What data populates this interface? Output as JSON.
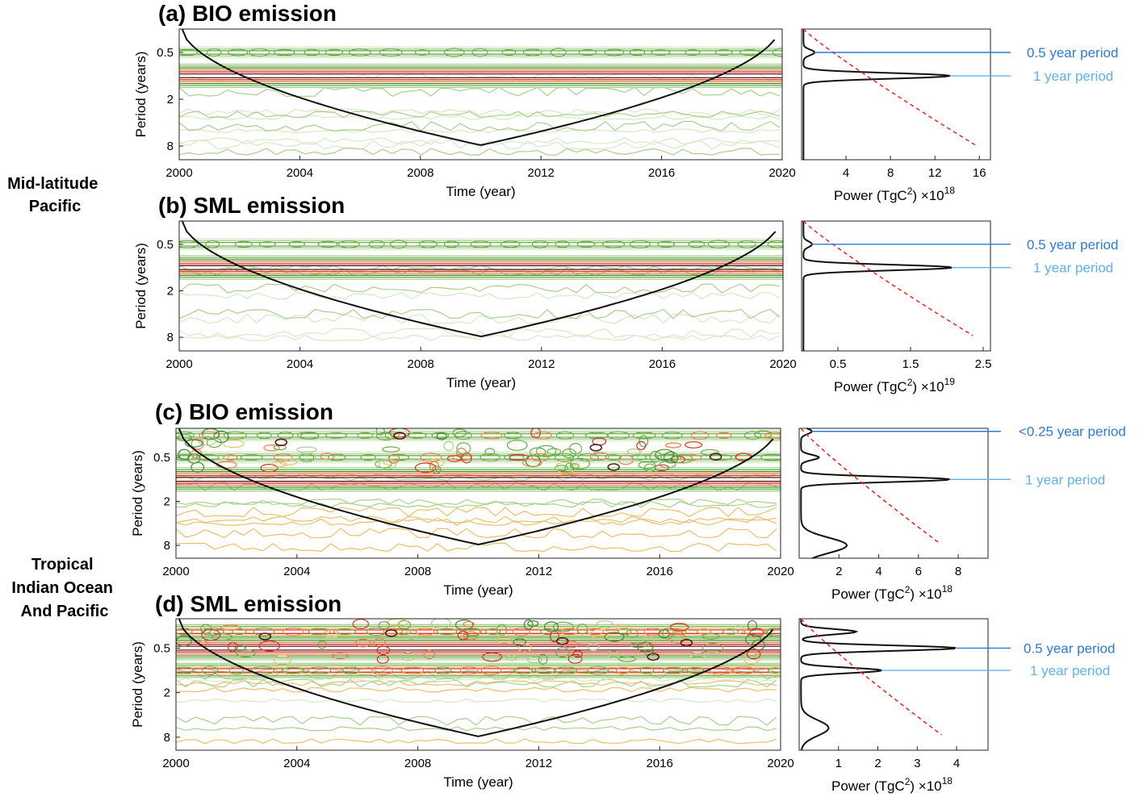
{
  "figure": {
    "region_labels": [
      {
        "lines": [
          "Mid-latitude",
          "Pacific"
        ]
      },
      {
        "lines": [
          "Tropical",
          "Indian Ocean",
          "And Pacific"
        ]
      }
    ]
  },
  "colors": {
    "sig_curve": "#111111",
    "spectrum": "#111111",
    "significance": "#e8291c",
    "contours": [
      "#d7e8c6",
      "#a8d08d",
      "#6aae4a",
      "#3d8a2b",
      "#e9c06a",
      "#ee7e4a",
      "#d9312a",
      "#5a1a20"
    ],
    "annot_dark": "#2d7bd6",
    "annot_light": "#5cb3ec"
  },
  "chart_data": [
    {
      "type": "heatmap",
      "panel": "(a)",
      "title": "BIO emission",
      "xlabel": "Time (year)",
      "ylabel": "Period (years)",
      "x_ticks": [
        "2000",
        "2004",
        "2008",
        "2012",
        "2016",
        "2020"
      ],
      "y_ticks": [
        "0.5",
        "2",
        "8"
      ],
      "xlim": [
        2000,
        2020
      ],
      "period_range": [
        0.25,
        12
      ],
      "dominant_bands": [
        {
          "period": 1,
          "strength": "strong"
        },
        {
          "period": 0.5,
          "strength": "weak"
        }
      ],
      "cone_of_influence_max_period": 7.8,
      "global_spectrum": {
        "xlabel": "Power (TgC",
        "xlabel_sup": "2",
        "xlabel_tail": ") ×10",
        "multiplier_exp": "18",
        "x_ticks": [
          "4",
          "8",
          "12",
          "16"
        ],
        "xlim": [
          0,
          17
        ],
        "peaks": [
          {
            "period": 0.5,
            "power": 1.0
          },
          {
            "period": 1,
            "power": 13.2
          }
        ],
        "significance_end_power": 15.5,
        "annotations": [
          {
            "text": "0.5 year period",
            "period": 0.5,
            "shade": "dark"
          },
          {
            "text": "1 year period",
            "period": 1,
            "shade": "light"
          }
        ]
      }
    },
    {
      "type": "heatmap",
      "panel": "(b)",
      "title": "SML emission",
      "xlabel": "Time (year)",
      "ylabel": "Period (years)",
      "x_ticks": [
        "2000",
        "2004",
        "2008",
        "2012",
        "2016",
        "2020"
      ],
      "y_ticks": [
        "0.5",
        "2",
        "8"
      ],
      "xlim": [
        2000,
        2020
      ],
      "period_range": [
        0.25,
        12
      ],
      "dominant_bands": [
        {
          "period": 1,
          "strength": "strong"
        },
        {
          "period": 0.5,
          "strength": "weak"
        }
      ],
      "cone_of_influence_max_period": 7.8,
      "global_spectrum": {
        "xlabel": "Power (TgC",
        "xlabel_sup": "2",
        "xlabel_tail": ") ×10",
        "multiplier_exp": "19",
        "x_ticks": [
          "0.5",
          "1.5",
          "2.5"
        ],
        "xlim": [
          0,
          2.6
        ],
        "peaks": [
          {
            "period": 0.5,
            "power": 0.12
          },
          {
            "period": 1,
            "power": 2.05
          }
        ],
        "significance_end_power": 2.35,
        "annotations": [
          {
            "text": "0.5 year period",
            "period": 0.5,
            "shade": "dark"
          },
          {
            "text": "1 year period",
            "period": 1,
            "shade": "light"
          }
        ]
      }
    },
    {
      "type": "heatmap",
      "panel": "(c)",
      "title": "BIO emission",
      "xlabel": "Time (year)",
      "ylabel": "Period (years)",
      "x_ticks": [
        "2000",
        "2004",
        "2008",
        "2012",
        "2016",
        "2020"
      ],
      "y_ticks": [
        "0.5",
        "2",
        "8"
      ],
      "xlim": [
        2000,
        2020
      ],
      "period_range": [
        0.2,
        12
      ],
      "dominant_bands": [
        {
          "period": 1,
          "strength": "strong"
        },
        {
          "period": 0.5,
          "strength": "weak"
        },
        {
          "period": 0.25,
          "strength": "weak"
        }
      ],
      "cone_of_influence_max_period": 7.8,
      "global_spectrum": {
        "xlabel": "Power (TgC",
        "xlabel_sup": "2",
        "xlabel_tail": ") ×10",
        "multiplier_exp": "18",
        "x_ticks": [
          "2",
          "4",
          "6",
          "8"
        ],
        "xlim": [
          0,
          9.5
        ],
        "peaks": [
          {
            "period": 0.22,
            "power": 0.55
          },
          {
            "period": 0.5,
            "power": 0.9
          },
          {
            "period": 1,
            "power": 7.5
          },
          {
            "period": 8,
            "power": 2.3
          }
        ],
        "significance_end_power": 7.0,
        "annotations": [
          {
            "text": "<0.25 year period",
            "period": 0.22,
            "shade": "dark"
          },
          {
            "text": "1 year period",
            "period": 1,
            "shade": "light"
          }
        ]
      }
    },
    {
      "type": "heatmap",
      "panel": "(d)",
      "title": "SML emission",
      "xlabel": "Time (year)",
      "ylabel": "Period (years)",
      "x_ticks": [
        "2000",
        "2004",
        "2008",
        "2012",
        "2016",
        "2020"
      ],
      "y_ticks": [
        "0.5",
        "2",
        "8"
      ],
      "xlim": [
        2000,
        2020
      ],
      "period_range": [
        0.2,
        12
      ],
      "dominant_bands": [
        {
          "period": 0.5,
          "strength": "strong"
        },
        {
          "period": 1,
          "strength": "medium"
        },
        {
          "period": 0.3,
          "strength": "medium"
        }
      ],
      "cone_of_influence_max_period": 7.8,
      "global_spectrum": {
        "xlabel": "Power (TgC",
        "xlabel_sup": "2",
        "xlabel_tail": ") ×10",
        "multiplier_exp": "18",
        "x_ticks": [
          "1",
          "2",
          "3",
          "4"
        ],
        "xlim": [
          0,
          4.8
        ],
        "peaks": [
          {
            "period": 0.3,
            "power": 1.4
          },
          {
            "period": 0.5,
            "power": 3.95
          },
          {
            "period": 1,
            "power": 2.05
          },
          {
            "period": 6,
            "power": 0.7
          }
        ],
        "significance_end_power": 3.6,
        "annotations": [
          {
            "text": "0.5 year period",
            "period": 0.5,
            "shade": "dark"
          },
          {
            "text": "1 year period",
            "period": 1,
            "shade": "light"
          }
        ]
      }
    }
  ]
}
